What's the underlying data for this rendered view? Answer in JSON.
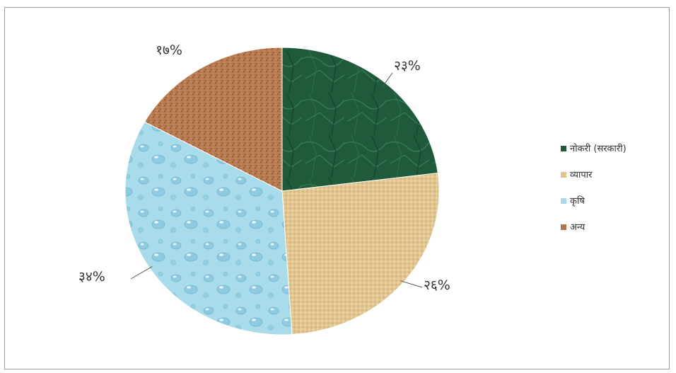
{
  "chart_data": {
    "type": "pie",
    "title": "",
    "categories": [
      "नोकरी (सरकारी)",
      "व्यापार",
      "कृषि",
      "अन्य"
    ],
    "values": [
      23,
      26,
      34,
      17
    ],
    "labels": [
      "२३%",
      "२६%",
      "३४%",
      "१७%"
    ],
    "colors": [
      "#1e5a3a",
      "#e0c48e",
      "#a8dcea",
      "#b5764a"
    ],
    "legend_position": "right"
  }
}
